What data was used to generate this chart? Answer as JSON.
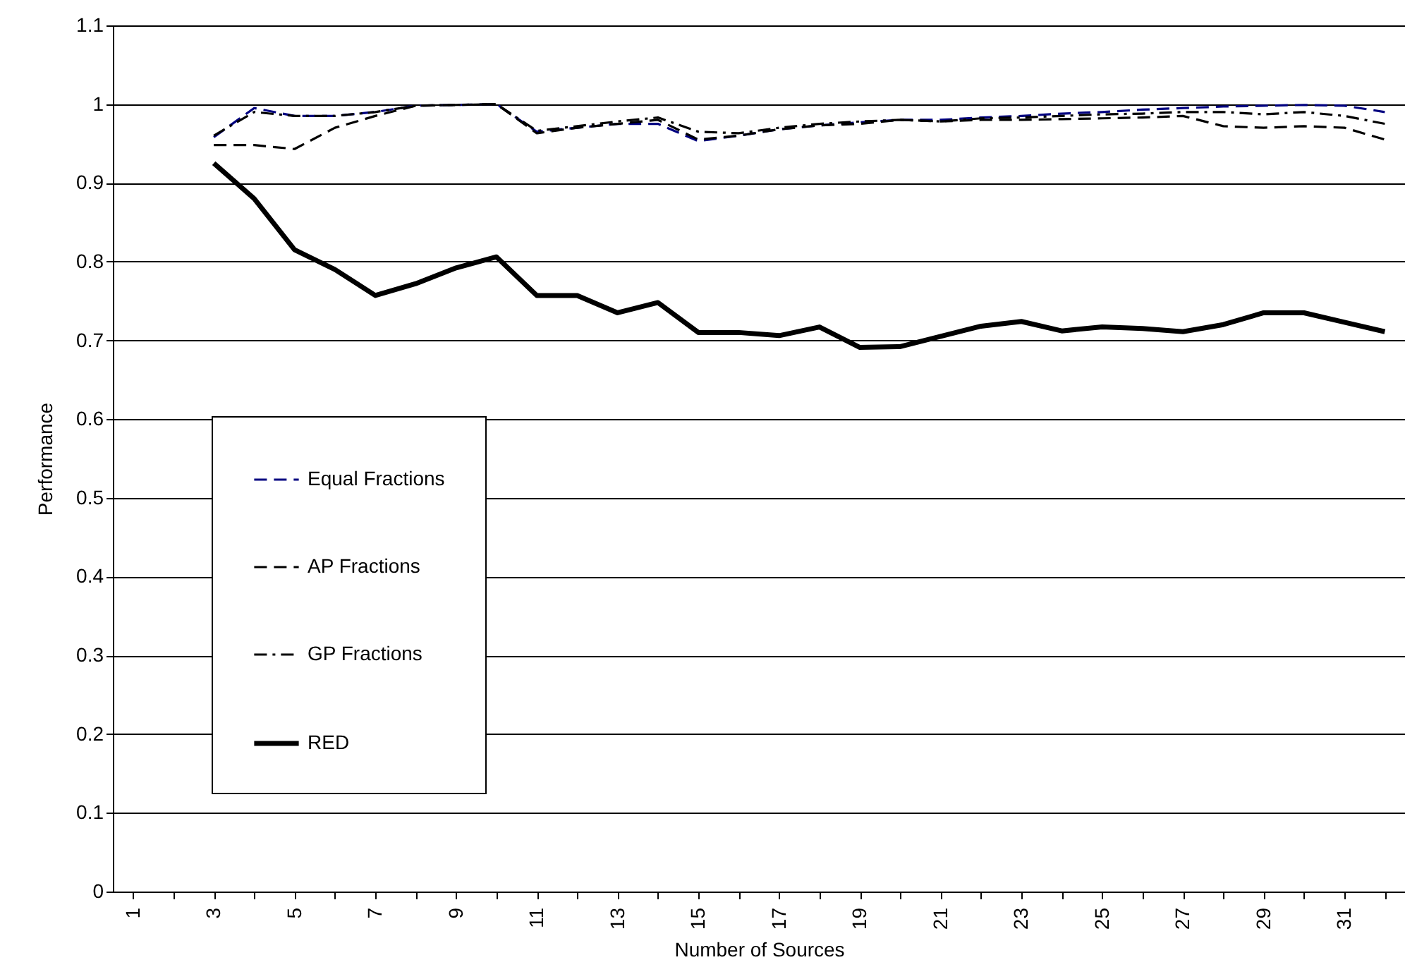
{
  "chart_data": {
    "type": "line",
    "xlabel": "Number of Sources",
    "ylabel": "Performance",
    "categories": [
      "1",
      null,
      "3",
      null,
      "5",
      null,
      "7",
      null,
      "9",
      null,
      "11",
      null,
      "13",
      null,
      "15",
      null,
      "17",
      null,
      "19",
      null,
      "21",
      null,
      "23",
      null,
      "25",
      null,
      "27",
      null,
      "29",
      null,
      "31",
      null
    ],
    "ylim": [
      0,
      1.1
    ],
    "yticks": [
      0,
      0.1,
      0.2,
      0.3,
      0.4,
      0.5,
      0.6,
      0.7,
      0.8,
      0.9,
      1,
      1.1
    ],
    "grid": "y",
    "legend": "bottom left",
    "series": [
      {
        "name": "Equal Fractions",
        "color": "#000080",
        "line_style": "dashed",
        "values": [
          null,
          null,
          0.958,
          0.995,
          0.985,
          0.985,
          0.99,
          0.998,
          0.999,
          1.0,
          0.965,
          0.97,
          0.975,
          0.975,
          0.953,
          0.96,
          0.968,
          0.973,
          0.977,
          0.98,
          0.98,
          0.983,
          0.985,
          0.988,
          0.99,
          0.993,
          0.995,
          0.997,
          0.998,
          0.999,
          0.998,
          0.99
        ]
      },
      {
        "name": "AP Fractions",
        "color": "#000000",
        "line_style": "dashed",
        "values": [
          null,
          null,
          0.948,
          0.948,
          0.943,
          0.97,
          0.985,
          0.998,
          0.999,
          1.0,
          0.963,
          0.97,
          0.975,
          0.98,
          0.955,
          0.96,
          0.968,
          0.973,
          0.975,
          0.98,
          0.978,
          0.98,
          0.98,
          0.981,
          0.982,
          0.983,
          0.985,
          0.972,
          0.97,
          0.972,
          0.97,
          0.955
        ]
      },
      {
        "name": "GP Fractions",
        "color": "#000000",
        "line_style": "dashdot",
        "values": [
          null,
          null,
          0.96,
          0.99,
          0.985,
          0.985,
          0.99,
          0.998,
          0.999,
          1.0,
          0.966,
          0.972,
          0.978,
          0.983,
          0.965,
          0.963,
          0.97,
          0.975,
          0.978,
          0.98,
          0.978,
          0.982,
          0.983,
          0.985,
          0.987,
          0.988,
          0.99,
          0.99,
          0.987,
          0.99,
          0.985,
          0.975
        ]
      },
      {
        "name": "RED",
        "color": "#000000",
        "line_style": "solid",
        "values": [
          null,
          null,
          0.925,
          0.88,
          0.815,
          0.79,
          0.757,
          0.772,
          0.792,
          0.806,
          0.757,
          0.757,
          0.735,
          0.748,
          0.71,
          0.71,
          0.706,
          0.717,
          0.691,
          0.692,
          0.705,
          0.718,
          0.724,
          0.712,
          0.717,
          0.715,
          0.711,
          0.72,
          0.735,
          0.735,
          0.723,
          0.711
        ]
      }
    ]
  }
}
